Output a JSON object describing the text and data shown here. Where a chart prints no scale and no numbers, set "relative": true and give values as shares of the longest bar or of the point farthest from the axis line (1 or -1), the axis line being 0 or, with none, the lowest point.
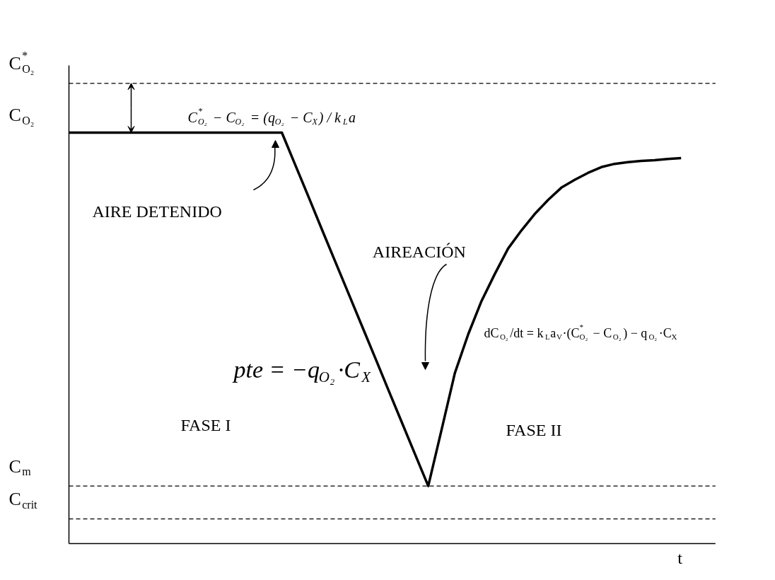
{
  "chart_data": {
    "type": "line",
    "relative": true,
    "xlabel": "t",
    "categories": [
      null,
      null,
      null,
      null,
      null,
      null,
      null,
      null,
      null,
      null,
      null,
      null,
      null,
      null,
      null,
      null,
      null,
      null,
      null,
      null,
      null,
      null,
      null,
      null,
      null,
      null,
      null,
      null,
      null,
      null,
      null,
      null,
      null,
      null,
      null,
      null,
      null,
      null,
      null,
      null,
      null,
      null,
      null,
      null,
      null,
      null,
      null
    ],
    "series": [
      {
        "color": "#000000",
        "values": [
          1,
          1,
          1,
          1,
          1,
          1,
          1,
          1,
          1,
          1,
          1,
          1,
          1,
          1,
          1,
          1,
          1,
          0.922,
          0.844,
          0.765,
          0.687,
          0.609,
          0.531,
          0.453,
          0.374,
          0.296,
          0.218,
          0.14,
          0.277,
          0.415,
          0.509,
          0.59,
          0.656,
          0.718,
          0.762,
          0.802,
          0.836,
          0.866,
          0.885,
          0.902,
          0.916,
          0.924,
          0.928,
          0.931,
          0.933,
          0.936,
          0.938
        ]
      }
    ],
    "ref_lines": [
      {
        "axis": "y",
        "value": 1.12,
        "label": "C$^{*}$$_{O₂}$",
        "line_style": "dashed"
      },
      {
        "axis": "y",
        "value": 0.14,
        "label": "C$_{m}$",
        "line_style": "dashed"
      },
      {
        "axis": "y",
        "value": 0.06,
        "label": "C$_{crit}$",
        "line_style": "dashed"
      }
    ],
    "annotations": [
      "C$^{*}$$_{O₂}$ − C$_{O₂}$ = (q$_{O₂}$ − C$_{X}$) / k$_{L}$a",
      "AIRE DETENIDO",
      "AIREACIÓN",
      "pte = −q$_{O₂}$·C$_{X}$",
      "dC$_{O₂}$/dt = k$_{L}$a$_{V}$·(C$^{*}$$_{O₂}$ − C$_{O₂}$) − q$_{O₂}$·C$_{X}$",
      "FASE I",
      "FASE II",
      "C$_{O₂}$"
    ],
    "grid": false,
    "marker": "none",
    "line_style": "solid"
  }
}
